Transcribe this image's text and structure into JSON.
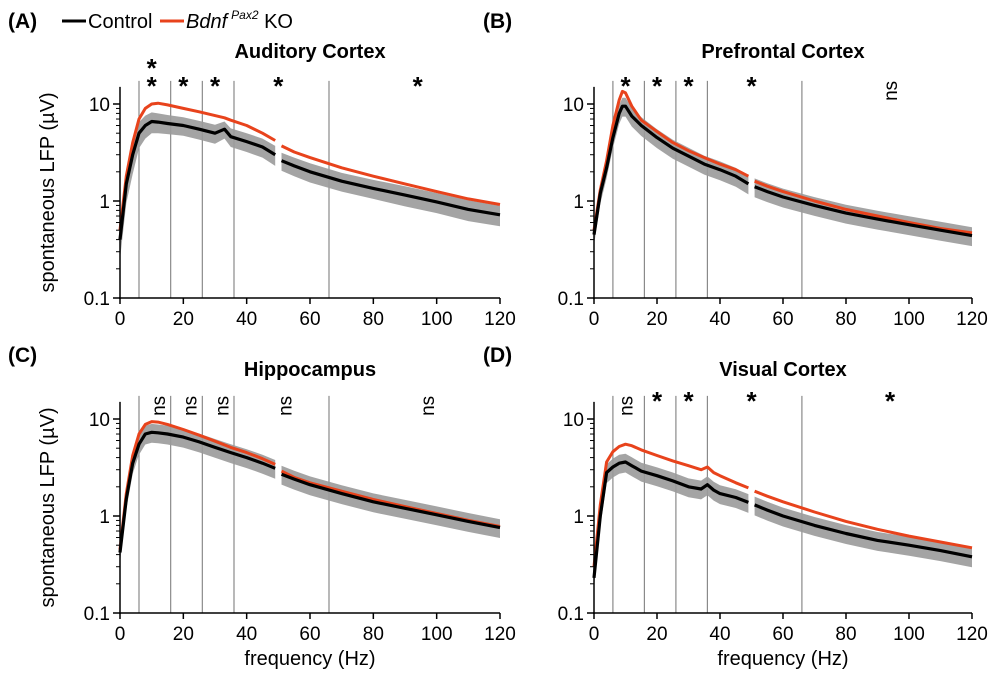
{
  "legend": {
    "items": [
      {
        "label": "Control",
        "color": "#000000"
      },
      {
        "label_main": "Bdnf",
        "label_sup": "Pax2",
        "label_suffix": " KO",
        "color": "#e8431c"
      }
    ]
  },
  "colors": {
    "control": "#000000",
    "ko": "#e8431c",
    "band": "#9a9a9a",
    "band_lines": "#6f6f6f"
  },
  "shared": {
    "ylabel": "spontaneous  LFP (µV)",
    "xlabel": "frequency (Hz)",
    "x_ticks": [
      "0",
      "20",
      "40",
      "60",
      "80",
      "100",
      "120"
    ],
    "y_ticks": [
      "0.1",
      "1",
      "10"
    ]
  },
  "chart_data": [
    {
      "panel": "(A)",
      "title": "Auditory Cortex",
      "type": "line",
      "x_scale": "linear",
      "y_scale": "log",
      "xlim": [
        0,
        120
      ],
      "ylim": [
        0.1,
        15
      ],
      "band_boundaries_hz": [
        6,
        16,
        26,
        36,
        66
      ],
      "significance": [
        {
          "x": 10,
          "label": "*",
          "level": 0
        },
        {
          "x": 10,
          "label": "*",
          "level": 1
        },
        {
          "x": 20,
          "label": "*",
          "level": 1
        },
        {
          "x": 30,
          "label": "*",
          "level": 1
        },
        {
          "x": 50,
          "label": "*",
          "level": 1
        },
        {
          "x": 94,
          "label": "*",
          "level": 1
        }
      ],
      "gap_hz": [
        49,
        51
      ],
      "series": [
        {
          "name": "Control",
          "x": [
            0,
            2,
            4,
            6,
            8,
            10,
            12,
            15,
            20,
            25,
            30,
            33,
            35,
            40,
            45,
            49,
            51,
            55,
            60,
            70,
            80,
            90,
            100,
            110,
            120
          ],
          "y": [
            0.4,
            1.5,
            3.0,
            5.0,
            6.0,
            6.6,
            6.5,
            6.3,
            6.0,
            5.5,
            5.0,
            5.5,
            4.6,
            4.1,
            3.6,
            3.0,
            2.6,
            2.3,
            2.0,
            1.6,
            1.35,
            1.15,
            0.98,
            0.82,
            0.72
          ],
          "band": [
            0.15,
            0.55,
            1.1,
            1.5,
            1.6,
            1.6,
            1.5,
            1.4,
            1.3,
            1.2,
            1.1,
            1.1,
            1.0,
            0.9,
            0.8,
            0.7,
            0.55,
            0.5,
            0.45,
            0.35,
            0.3,
            0.27,
            0.23,
            0.2,
            0.17
          ]
        },
        {
          "name": "Bdnf Pax2 KO",
          "x": [
            0,
            2,
            4,
            6,
            8,
            10,
            12,
            15,
            20,
            25,
            30,
            33,
            35,
            40,
            45,
            49,
            51,
            55,
            60,
            70,
            80,
            90,
            100,
            110,
            120
          ],
          "y": [
            0.5,
            1.8,
            4.0,
            7.0,
            9.0,
            10.0,
            10.2,
            9.8,
            9.0,
            8.3,
            7.6,
            7.2,
            6.8,
            6.0,
            5.0,
            4.2,
            3.7,
            3.2,
            2.8,
            2.2,
            1.8,
            1.5,
            1.25,
            1.05,
            0.92
          ]
        }
      ]
    },
    {
      "panel": "(B)",
      "title": "Prefrontal Cortex",
      "type": "line",
      "x_scale": "linear",
      "y_scale": "log",
      "xlim": [
        0,
        120
      ],
      "ylim": [
        0.1,
        15
      ],
      "band_boundaries_hz": [
        6,
        16,
        26,
        36,
        66
      ],
      "significance": [
        {
          "x": 10,
          "label": "*",
          "level": 1
        },
        {
          "x": 20,
          "label": "*",
          "level": 1
        },
        {
          "x": 30,
          "label": "*",
          "level": 1
        },
        {
          "x": 50,
          "label": "*",
          "level": 1
        },
        {
          "x": 94,
          "label": "ns",
          "level": 1
        }
      ],
      "gap_hz": [
        49,
        51
      ],
      "series": [
        {
          "name": "Control",
          "x": [
            0,
            2,
            4,
            6,
            8,
            9,
            10,
            12,
            15,
            20,
            25,
            30,
            35,
            40,
            45,
            49,
            51,
            55,
            60,
            70,
            80,
            90,
            100,
            110,
            120
          ],
          "y": [
            0.45,
            1.2,
            2.2,
            4.5,
            8.0,
            9.5,
            9.5,
            7.5,
            6.0,
            4.5,
            3.5,
            2.9,
            2.4,
            2.1,
            1.8,
            1.5,
            1.4,
            1.25,
            1.1,
            0.9,
            0.75,
            0.65,
            0.57,
            0.5,
            0.44
          ]
        },
        {
          "name": "Bdnf Pax2 KO",
          "x": [
            0,
            2,
            4,
            6,
            8,
            9,
            10,
            12,
            15,
            20,
            25,
            30,
            35,
            40,
            45,
            49,
            51,
            55,
            60,
            70,
            80,
            90,
            100,
            110,
            120
          ],
          "y": [
            0.5,
            1.3,
            2.6,
            6.0,
            11.0,
            13.5,
            13.0,
            9.5,
            6.8,
            5.2,
            4.0,
            3.3,
            2.8,
            2.4,
            2.1,
            1.8,
            1.6,
            1.42,
            1.25,
            1.0,
            0.82,
            0.7,
            0.6,
            0.52,
            0.47
          ]
        }
      ]
    },
    {
      "panel": "(C)",
      "title": "Hippocampus",
      "type": "line",
      "x_scale": "linear",
      "y_scale": "log",
      "xlim": [
        0,
        120
      ],
      "ylim": [
        0.1,
        15
      ],
      "band_boundaries_hz": [
        6,
        16,
        26,
        36,
        66
      ],
      "significance": [
        {
          "x": 12,
          "label": "ns",
          "level": 1
        },
        {
          "x": 22,
          "label": "ns",
          "level": 1
        },
        {
          "x": 32,
          "label": "ns",
          "level": 1
        },
        {
          "x": 52,
          "label": "ns",
          "level": 1
        },
        {
          "x": 97,
          "label": "ns",
          "level": 1
        }
      ],
      "gap_hz": [
        49,
        51
      ],
      "series": [
        {
          "name": "Control",
          "x": [
            0,
            2,
            4,
            6,
            8,
            10,
            12,
            15,
            20,
            25,
            30,
            35,
            40,
            45,
            49,
            51,
            55,
            60,
            70,
            80,
            90,
            100,
            110,
            120
          ],
          "y": [
            0.42,
            1.5,
            3.5,
            5.5,
            7.0,
            7.3,
            7.2,
            7.0,
            6.5,
            5.8,
            5.1,
            4.5,
            4.0,
            3.5,
            3.1,
            2.7,
            2.4,
            2.1,
            1.7,
            1.4,
            1.2,
            1.03,
            0.88,
            0.76
          ]
        },
        {
          "name": "Bdnf Pax2 KO",
          "x": [
            0,
            2,
            4,
            6,
            8,
            10,
            12,
            15,
            20,
            25,
            30,
            35,
            40,
            45,
            49,
            51,
            55,
            60,
            70,
            80,
            90,
            100,
            110,
            120
          ],
          "y": [
            0.45,
            1.7,
            4.2,
            7.0,
            8.8,
            9.4,
            9.3,
            8.8,
            7.8,
            6.8,
            5.9,
            5.1,
            4.5,
            3.9,
            3.4,
            2.9,
            2.5,
            2.2,
            1.8,
            1.48,
            1.25,
            1.06,
            0.9,
            0.78
          ]
        }
      ]
    },
    {
      "panel": "(D)",
      "title": "Visual Cortex",
      "type": "line",
      "x_scale": "linear",
      "y_scale": "log",
      "xlim": [
        0,
        120
      ],
      "ylim": [
        0.1,
        15
      ],
      "band_boundaries_hz": [
        6,
        16,
        26,
        36,
        66
      ],
      "significance": [
        {
          "x": 10,
          "label": "ns",
          "level": 1
        },
        {
          "x": 20,
          "label": "*",
          "level": 1
        },
        {
          "x": 30,
          "label": "*",
          "level": 1
        },
        {
          "x": 50,
          "label": "*",
          "level": 1
        },
        {
          "x": 94,
          "label": "*",
          "level": 1
        }
      ],
      "gap_hz": [
        49,
        51
      ],
      "series": [
        {
          "name": "Control",
          "x": [
            0,
            2,
            4,
            6,
            8,
            10,
            12,
            15,
            20,
            25,
            30,
            34,
            36,
            38,
            40,
            45,
            49,
            51,
            55,
            60,
            70,
            80,
            90,
            100,
            110,
            120
          ],
          "y": [
            0.23,
            1.0,
            2.8,
            3.2,
            3.5,
            3.6,
            3.3,
            2.9,
            2.6,
            2.3,
            2.0,
            1.9,
            2.1,
            1.85,
            1.7,
            1.55,
            1.38,
            1.3,
            1.15,
            1.0,
            0.8,
            0.66,
            0.56,
            0.5,
            0.44,
            0.38
          ]
        },
        {
          "name": "Bdnf Pax2 KO",
          "x": [
            0,
            2,
            4,
            6,
            8,
            10,
            12,
            15,
            20,
            25,
            30,
            34,
            36,
            38,
            40,
            45,
            49,
            51,
            55,
            60,
            70,
            80,
            90,
            100,
            110,
            120
          ],
          "y": [
            0.3,
            1.3,
            3.6,
            4.6,
            5.2,
            5.5,
            5.3,
            4.8,
            4.2,
            3.7,
            3.3,
            3.0,
            3.2,
            2.8,
            2.6,
            2.2,
            1.95,
            1.8,
            1.6,
            1.4,
            1.1,
            0.88,
            0.73,
            0.62,
            0.54,
            0.47
          ]
        }
      ]
    }
  ]
}
